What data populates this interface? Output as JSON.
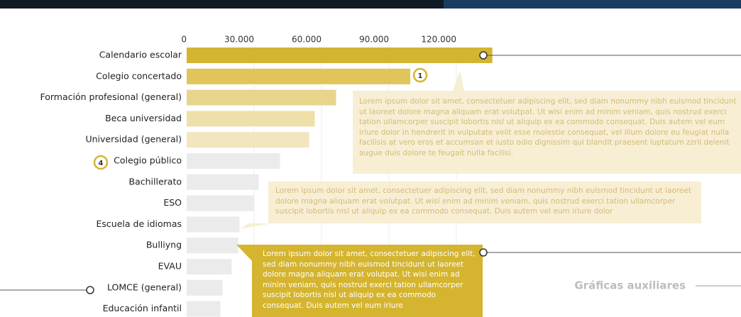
{
  "chart_data": {
    "type": "bar",
    "orientation": "horizontal",
    "categories": [
      "Calendario escolar",
      "Colegio concertado",
      "Formación profesional (general)",
      "Beca universidad",
      "Universidad (general)",
      "Colegio público",
      "Bachillerato",
      "ESO",
      "Escuela de idiomas",
      "Bulliyng",
      "EVAU",
      "LOMCE (general)",
      "Educación infantil"
    ],
    "values": [
      136000,
      99500,
      66500,
      57000,
      54500,
      41500,
      32000,
      30000,
      23500,
      23000,
      20000,
      16000,
      15000
    ],
    "colors": [
      "#d4b532",
      "#e0c55a",
      "#e9d48c",
      "#efdfa8",
      "#f1e6bf",
      "#ebebeb",
      "#ebebeb",
      "#ebebeb",
      "#ebebeb",
      "#ebebeb",
      "#ebebeb",
      "#ebebeb",
      "#ebebeb"
    ],
    "xlim": [
      0,
      150000
    ],
    "xticks": [
      0,
      {
        "value": 30000,
        "label": "30.000"
      },
      {
        "value": 60000,
        "label": "60.000"
      },
      {
        "value": 90000,
        "label": "90.000"
      },
      {
        "value": 120000,
        "label": "120.000"
      }
    ],
    "grid": true,
    "annotations": {
      "badges": [
        "1",
        "4"
      ],
      "callouts": [
        "Lorem ipsum dolor sit amet, consectetuer adipiscing elit, sed diam nonummy nibh euismod tincidunt ut laoreet dolore magna aliquam erat volutpat. Ut wisi enim ad minim veniam, quis nostrud exerci tation ullamcorper suscipit lobortis nisl ut aliquip ex ea commodo consequat. Duis autem vel eum iriure dolor in hendrerit in vulputate velit esse molestie consequat, vel illum dolore eu feugiat nulla facilisis at vero eros et accumsan et iusto odio dignissim qui blandit praesent luptatum zzril delenit augue duis dolore te feugait nulla facilisi.",
        "Lorem ipsum dolor sit amet, consectetuer adipiscing elit, sed diam nonummy nibh euismod tincidunt ut laoreet dolore magna aliquam erat volutpat. Ut wisi enim ad minim veniam, quis nostrud exerci tation ullamcorper suscipit lobortis nisl ut aliquip ex ea commodo consequat. Duis autem vel eum iriure dolor",
        "Lorem ipsum dolor sit amet, consectetuer adipiscing elit, sed diam nonummy nibh euismod tincidunt ut laoreet dolore magna aliquam erat volutpat. Ut wisi enim ad minim veniam, quis nostrud exerci tation ullamcorper suscipit lobortis nisl ut aliquip ex ea commodo consequat. Duis autem vel eum iriure"
      ],
      "section_label": "Gráficas auxiliares"
    }
  }
}
